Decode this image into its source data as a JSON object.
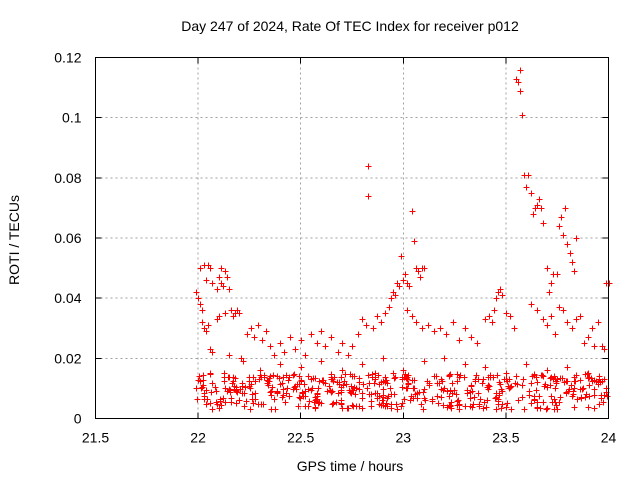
{
  "chart_data": {
    "type": "scatter",
    "title": "Day 247 of 2024, Rate Of TEC Index for receiver p012",
    "xlabel": "GPS time / hours",
    "ylabel": "ROTI / TECUs",
    "xlim": [
      21.5,
      24
    ],
    "ylim": [
      0,
      0.12
    ],
    "xticks": [
      21.5,
      22,
      22.5,
      23,
      23.5,
      24
    ],
    "xtick_labels": [
      "21.5",
      "22",
      "22.5",
      "23",
      "23.5",
      "24"
    ],
    "yticks": [
      0,
      0.02,
      0.04,
      0.06,
      0.08,
      0.1,
      0.12
    ],
    "ytick_labels": [
      "0",
      "0.02",
      "0.04",
      "0.06",
      "0.08",
      "0.1",
      "0.12"
    ],
    "grid": true,
    "marker": "+",
    "color": "#ff0000",
    "series": [
      {
        "name": "ROTI",
        "points": [
          [
            21.99,
            0.042
          ],
          [
            22.0,
            0.04
          ],
          [
            22.01,
            0.038
          ],
          [
            22.02,
            0.036
          ],
          [
            22.01,
            0.05
          ],
          [
            22.03,
            0.051
          ],
          [
            22.05,
            0.051
          ],
          [
            22.06,
            0.05
          ],
          [
            22.04,
            0.046
          ],
          [
            22.07,
            0.045
          ],
          [
            22.09,
            0.043
          ],
          [
            22.1,
            0.047
          ],
          [
            22.11,
            0.045
          ],
          [
            22.12,
            0.044
          ],
          [
            22.13,
            0.049
          ],
          [
            22.14,
            0.047
          ],
          [
            22.15,
            0.043
          ],
          [
            22.11,
            0.05
          ],
          [
            22.02,
            0.032
          ],
          [
            22.03,
            0.03
          ],
          [
            22.04,
            0.029
          ],
          [
            22.05,
            0.031
          ],
          [
            22.06,
            0.023
          ],
          [
            22.07,
            0.022
          ],
          [
            22.09,
            0.033
          ],
          [
            22.1,
            0.034
          ],
          [
            22.13,
            0.035
          ],
          [
            22.15,
            0.021
          ],
          [
            22.16,
            0.036
          ],
          [
            22.17,
            0.034
          ],
          [
            22.18,
            0.035
          ],
          [
            22.19,
            0.036
          ],
          [
            22.2,
            0.035
          ],
          [
            22.21,
            0.02
          ],
          [
            22.22,
            0.019
          ],
          [
            22.24,
            0.028
          ],
          [
            22.26,
            0.03
          ],
          [
            22.27,
            0.027
          ],
          [
            22.29,
            0.031
          ],
          [
            22.31,
            0.026
          ],
          [
            22.33,
            0.029
          ],
          [
            22.35,
            0.024
          ],
          [
            22.37,
            0.021
          ],
          [
            22.4,
            0.025
          ],
          [
            22.42,
            0.022
          ],
          [
            22.45,
            0.027
          ],
          [
            22.47,
            0.023
          ],
          [
            22.5,
            0.026
          ],
          [
            22.52,
            0.021
          ],
          [
            22.55,
            0.028
          ],
          [
            22.58,
            0.025
          ],
          [
            22.6,
            0.029
          ],
          [
            22.62,
            0.024
          ],
          [
            22.65,
            0.027
          ],
          [
            22.68,
            0.022
          ],
          [
            22.7,
            0.025
          ],
          [
            22.73,
            0.021
          ],
          [
            22.75,
            0.024
          ],
          [
            22.78,
            0.028
          ],
          [
            22.8,
            0.033
          ],
          [
            22.82,
            0.031
          ],
          [
            22.83,
            0.084
          ],
          [
            22.83,
            0.074
          ],
          [
            22.85,
            0.03
          ],
          [
            22.87,
            0.034
          ],
          [
            22.89,
            0.032
          ],
          [
            22.91,
            0.035
          ],
          [
            22.93,
            0.037
          ],
          [
            22.94,
            0.04
          ],
          [
            22.95,
            0.042
          ],
          [
            22.96,
            0.041
          ],
          [
            22.97,
            0.045
          ],
          [
            22.98,
            0.044
          ],
          [
            22.99,
            0.054
          ],
          [
            23.0,
            0.046
          ],
          [
            23.01,
            0.048
          ],
          [
            23.02,
            0.045
          ],
          [
            23.03,
            0.044
          ],
          [
            23.04,
            0.069
          ],
          [
            23.05,
            0.059
          ],
          [
            23.06,
            0.05
          ],
          [
            23.07,
            0.049
          ],
          [
            23.08,
            0.047
          ],
          [
            23.09,
            0.05
          ],
          [
            23.1,
            0.05
          ],
          [
            23.02,
            0.036
          ],
          [
            23.04,
            0.034
          ],
          [
            23.06,
            0.032
          ],
          [
            23.09,
            0.03
          ],
          [
            23.12,
            0.031
          ],
          [
            23.15,
            0.029
          ],
          [
            23.18,
            0.03
          ],
          [
            23.21,
            0.028
          ],
          [
            23.24,
            0.032
          ],
          [
            23.27,
            0.026
          ],
          [
            23.3,
            0.03
          ],
          [
            23.33,
            0.027
          ],
          [
            23.36,
            0.025
          ],
          [
            23.4,
            0.033
          ],
          [
            23.42,
            0.034
          ],
          [
            23.43,
            0.032
          ],
          [
            23.44,
            0.036
          ],
          [
            23.45,
            0.04
          ],
          [
            23.46,
            0.042
          ],
          [
            23.47,
            0.043
          ],
          [
            23.48,
            0.041
          ],
          [
            23.5,
            0.035
          ],
          [
            23.52,
            0.034
          ],
          [
            23.54,
            0.03
          ],
          [
            23.55,
            0.113
          ],
          [
            23.56,
            0.112
          ],
          [
            23.57,
            0.116
          ],
          [
            23.57,
            0.109
          ],
          [
            23.58,
            0.101
          ],
          [
            23.59,
            0.081
          ],
          [
            23.6,
            0.077
          ],
          [
            23.61,
            0.081
          ],
          [
            23.62,
            0.075
          ],
          [
            23.63,
            0.068
          ],
          [
            23.64,
            0.07
          ],
          [
            23.65,
            0.071
          ],
          [
            23.66,
            0.073
          ],
          [
            23.67,
            0.07
          ],
          [
            23.68,
            0.065
          ],
          [
            23.7,
            0.05
          ],
          [
            23.72,
            0.045
          ],
          [
            23.73,
            0.048
          ],
          [
            23.75,
            0.048
          ],
          [
            23.76,
            0.064
          ],
          [
            23.77,
            0.067
          ],
          [
            23.78,
            0.061
          ],
          [
            23.79,
            0.07
          ],
          [
            23.8,
            0.058
          ],
          [
            23.81,
            0.055
          ],
          [
            23.82,
            0.052
          ],
          [
            23.83,
            0.049
          ],
          [
            23.84,
            0.06
          ],
          [
            23.71,
            0.042
          ],
          [
            23.62,
            0.038
          ],
          [
            23.65,
            0.036
          ],
          [
            23.68,
            0.033
          ],
          [
            23.7,
            0.031
          ],
          [
            23.72,
            0.034
          ],
          [
            23.74,
            0.028
          ],
          [
            23.76,
            0.037
          ],
          [
            23.78,
            0.036
          ],
          [
            23.8,
            0.032
          ],
          [
            23.82,
            0.03
          ],
          [
            23.84,
            0.033
          ],
          [
            23.86,
            0.034
          ],
          [
            23.88,
            0.025
          ],
          [
            23.9,
            0.027
          ],
          [
            23.92,
            0.03
          ],
          [
            23.95,
            0.032
          ],
          [
            23.97,
            0.024
          ],
          [
            23.99,
            0.045
          ],
          [
            24.0,
            0.045
          ],
          [
            23.98,
            0.023
          ],
          [
            23.93,
            0.024
          ],
          [
            22.3,
            0.016
          ],
          [
            22.4,
            0.018
          ],
          [
            22.5,
            0.017
          ],
          [
            22.6,
            0.019
          ],
          [
            22.7,
            0.016
          ],
          [
            22.8,
            0.018
          ],
          [
            22.9,
            0.02
          ],
          [
            23.0,
            0.016
          ],
          [
            23.1,
            0.019
          ],
          [
            23.2,
            0.02
          ],
          [
            23.3,
            0.018
          ],
          [
            23.4,
            0.017
          ],
          [
            23.5,
            0.015
          ],
          [
            23.6,
            0.018
          ],
          [
            23.7,
            0.016
          ],
          [
            23.8,
            0.017
          ],
          [
            23.9,
            0.015
          ],
          [
            22.35,
            0.014
          ],
          [
            22.55,
            0.013
          ],
          [
            22.75,
            0.014
          ],
          [
            22.95,
            0.015
          ],
          [
            23.15,
            0.014
          ],
          [
            23.35,
            0.013
          ],
          [
            23.55,
            0.014
          ],
          [
            23.75,
            0.013
          ],
          [
            23.95,
            0.012
          ]
        ],
        "band": {
          "x_start": 21.99,
          "x_end": 24.0,
          "count": 520,
          "y_min": 0.003,
          "y_max": 0.015,
          "seed": 247
        }
      }
    ]
  }
}
